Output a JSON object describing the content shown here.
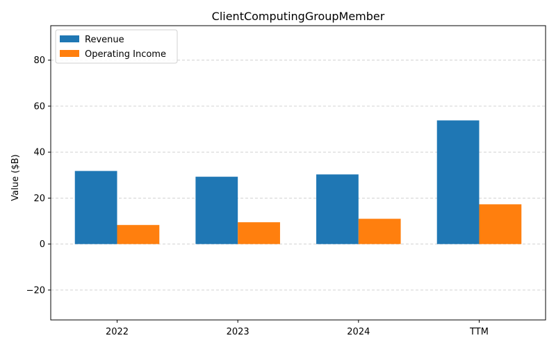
{
  "chart_data": {
    "type": "bar",
    "title": "ClientComputingGroupMember",
    "xlabel": "",
    "ylabel": "Value ($B)",
    "categories": [
      "2022",
      "2023",
      "2024",
      "TTM"
    ],
    "series": [
      {
        "name": "Revenue",
        "color": "#1f77b4",
        "values": [
          31.8,
          29.3,
          30.3,
          53.8
        ]
      },
      {
        "name": "Operating Income",
        "color": "#ff7f0e",
        "values": [
          8.3,
          9.5,
          11.0,
          17.3
        ]
      }
    ],
    "ylim": [
      -33,
      95
    ],
    "yticks": [
      "−20",
      "0",
      "20",
      "40",
      "60",
      "80"
    ],
    "ytick_values": [
      -20,
      0,
      20,
      40,
      60,
      80
    ],
    "grid": true,
    "legend_position": "top-left"
  }
}
